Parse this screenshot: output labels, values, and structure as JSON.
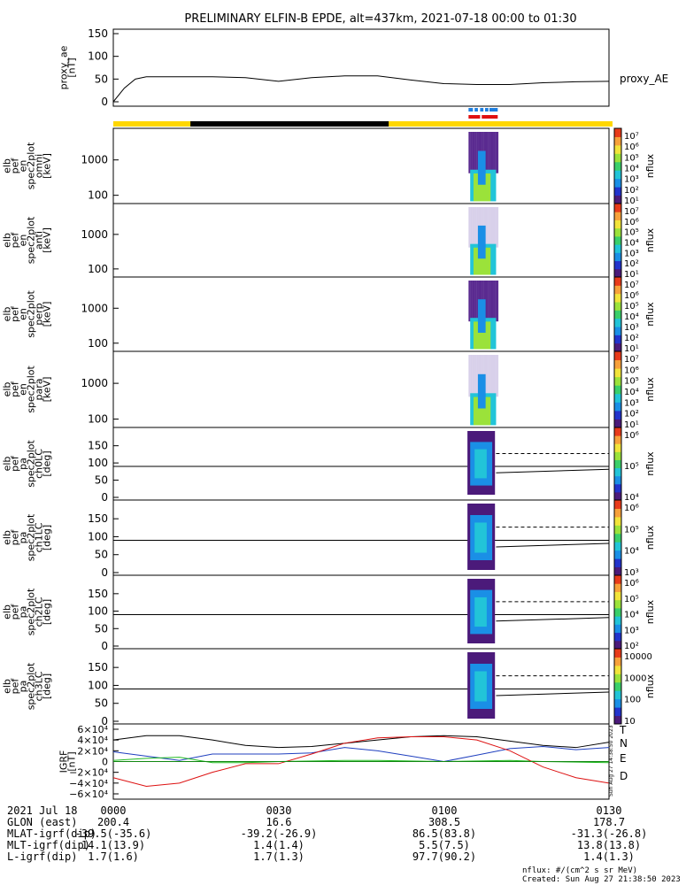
{
  "title": "PRELIMINARY ELFIN-B EPDE, alt=437km, 2021-07-18 00:00 to 01:30",
  "panels": [
    {
      "id": "proxy_ae",
      "ylabel": [
        "proxy_ae",
        "[nT]"
      ],
      "ticks": [
        "150",
        "100",
        "50",
        "0"
      ],
      "right_label": "proxy_AE"
    },
    {
      "id": "omni",
      "ylabel": [
        "elb",
        "pef",
        "en",
        "spec2plot",
        "omni",
        "[keV]"
      ],
      "ticks": [
        "1000",
        "100"
      ],
      "cb_ticks": [
        "10⁷",
        "10⁶",
        "10⁵",
        "10⁴",
        "10³",
        "10²",
        "10¹"
      ],
      "cb_label": "nflux"
    },
    {
      "id": "anti",
      "ylabel": [
        "elb",
        "pef",
        "en",
        "spec2plot",
        "anti",
        "[keV]"
      ],
      "ticks": [
        "1000",
        "100"
      ],
      "cb_ticks": [
        "10⁷",
        "10⁶",
        "10⁵",
        "10⁴",
        "10³",
        "10²",
        "10¹"
      ],
      "cb_label": "nflux"
    },
    {
      "id": "perp",
      "ylabel": [
        "elb",
        "pef",
        "en",
        "spec2plot",
        "perp",
        "[keV]"
      ],
      "ticks": [
        "1000",
        "100"
      ],
      "cb_ticks": [
        "10⁷",
        "10⁶",
        "10⁵",
        "10⁴",
        "10³",
        "10²",
        "10¹"
      ],
      "cb_label": "nflux"
    },
    {
      "id": "para",
      "ylabel": [
        "elb",
        "pef",
        "en",
        "spec2plot",
        "para",
        "[keV]"
      ],
      "ticks": [
        "1000",
        "100"
      ],
      "cb_ticks": [
        "10⁷",
        "10⁶",
        "10⁵",
        "10⁴",
        "10³",
        "10²",
        "10¹"
      ],
      "cb_label": "nflux"
    },
    {
      "id": "ch0LC",
      "ylabel": [
        "elb",
        "pef",
        "pa",
        "spec2plot",
        "ch0LC",
        "[deg]"
      ],
      "ticks": [
        "150",
        "100",
        "50",
        "0"
      ],
      "cb_ticks": [
        "10⁶",
        "10⁵",
        "10⁴"
      ],
      "cb_label": "nflux"
    },
    {
      "id": "ch1LC",
      "ylabel": [
        "elb",
        "pef",
        "pa",
        "spec2plot",
        "ch1LC",
        "[deg]"
      ],
      "ticks": [
        "150",
        "100",
        "50",
        "0"
      ],
      "cb_ticks": [
        "10⁶",
        "10⁵",
        "10⁴",
        "10³"
      ],
      "cb_label": "nflux"
    },
    {
      "id": "ch2LC",
      "ylabel": [
        "elb",
        "pef",
        "pa",
        "spec2plot",
        "ch2LC",
        "[deg]"
      ],
      "ticks": [
        "150",
        "100",
        "50",
        "0"
      ],
      "cb_ticks": [
        "10⁶",
        "10⁵",
        "10⁴",
        "10³",
        "10²"
      ],
      "cb_label": "nflux"
    },
    {
      "id": "ch3LC",
      "ylabel": [
        "elb",
        "pef",
        "pa",
        "spec2plot",
        "ch3LC",
        "[deg]"
      ],
      "ticks": [
        "150",
        "100",
        "50",
        "0"
      ],
      "cb_ticks": [
        "10000",
        "1000",
        "100",
        "10"
      ],
      "cb_label": "nflux"
    },
    {
      "id": "igrf",
      "ylabel": [
        "IGRF",
        "[nT]"
      ],
      "ticks": [
        "6×10⁴",
        "4×10⁴",
        "2×10⁴",
        "0",
        "−2×10⁴",
        "−4×10⁴",
        "−6×10⁴"
      ],
      "components": [
        "T",
        "N",
        "E",
        "D"
      ]
    }
  ],
  "component_colors": {
    "T": "#000000",
    "N": "#1f3fbf",
    "E": "#22bb22",
    "D": "#dd1111"
  },
  "bar_colors": {
    "sunlit": "#ffd700",
    "shadow": "#000000",
    "science_top": "#1e7fe0",
    "science_bottom": "#e01010"
  },
  "side_stamp": "Sun Aug 27 14:38:50 2023",
  "footer": {
    "date": "2021 Jul 18",
    "times": [
      "0000",
      "0030",
      "0100",
      "0130"
    ],
    "rows": [
      {
        "label": "GLON (east)",
        "values": [
          "200.4",
          "16.6",
          "308.5",
          "178.7"
        ]
      },
      {
        "label": "MLAT-igrf(dip)",
        "values": [
          "-39.5(-35.6)",
          "-39.2(-26.9)",
          "86.5(83.8)",
          "-31.3(-26.8)"
        ]
      },
      {
        "label": "MLT-igrf(dip)",
        "values": [
          "14.1(13.9)",
          "1.4(1.4)",
          "5.5(7.5)",
          "13.8(13.8)"
        ]
      },
      {
        "label": "L-igrf(dip)",
        "values": [
          "1.7(1.6)",
          "1.7(1.3)",
          "97.7(90.2)",
          "1.4(1.3)"
        ]
      }
    ],
    "units_note": "nflux: #/(cm^2 s sr MeV)",
    "created": "Created: Sun Aug 27 21:38:50 2023"
  },
  "chart_data": [
    {
      "type": "line",
      "name": "proxy_AE",
      "ylabel": "proxy_ae [nT]",
      "ylim": [
        0,
        150
      ],
      "x": [
        0,
        2,
        4,
        6,
        12,
        18,
        24,
        30,
        36,
        42,
        48,
        54,
        60,
        66,
        72,
        78,
        84,
        90
      ],
      "y": [
        0,
        30,
        50,
        55,
        55,
        55,
        53,
        45,
        53,
        57,
        57,
        48,
        40,
        38,
        38,
        42,
        44,
        45
      ]
    },
    {
      "type": "heatmap",
      "name": "omni",
      "ylabel": "[keV]",
      "yscale": "log",
      "yticks": [
        100,
        1000
      ]
    },
    {
      "type": "heatmap",
      "name": "anti",
      "ylabel": "[keV]",
      "yscale": "log",
      "yticks": [
        100,
        1000
      ]
    },
    {
      "type": "heatmap",
      "name": "perp",
      "ylabel": "[keV]",
      "yscale": "log",
      "yticks": [
        100,
        1000
      ]
    },
    {
      "type": "heatmap",
      "name": "para",
      "ylabel": "[keV]",
      "yscale": "log",
      "yticks": [
        100,
        1000
      ]
    },
    {
      "type": "heatmap",
      "name": "ch0LC",
      "ylabel": "[deg]",
      "ylim": [
        0,
        180
      ],
      "yticks": [
        0,
        50,
        100,
        150
      ]
    },
    {
      "type": "heatmap",
      "name": "ch1LC",
      "ylabel": "[deg]",
      "ylim": [
        0,
        180
      ],
      "yticks": [
        0,
        50,
        100,
        150
      ]
    },
    {
      "type": "heatmap",
      "name": "ch2LC",
      "ylabel": "[deg]",
      "ylim": [
        0,
        180
      ],
      "yticks": [
        0,
        50,
        100,
        150
      ]
    },
    {
      "type": "heatmap",
      "name": "ch3LC",
      "ylabel": "[deg]",
      "ylim": [
        0,
        180
      ],
      "yticks": [
        0,
        50,
        100,
        150
      ]
    },
    {
      "type": "line",
      "name": "IGRF",
      "ylabel": "[nT]",
      "ylim": [
        -60000,
        60000
      ],
      "x": [
        0,
        6,
        12,
        18,
        24,
        30,
        36,
        42,
        48,
        54,
        60,
        66,
        72,
        78,
        84,
        90
      ],
      "series": [
        {
          "name": "T",
          "y": [
            40000,
            48000,
            48000,
            40000,
            30000,
            26000,
            28000,
            34000,
            40000,
            46000,
            48000,
            46000,
            38000,
            30000,
            26000,
            36000
          ]
        },
        {
          "name": "N",
          "y": [
            18000,
            10000,
            2000,
            14000,
            14000,
            14000,
            16000,
            26000,
            20000,
            10000,
            0,
            12000,
            24000,
            28000,
            22000,
            26000
          ]
        },
        {
          "name": "E",
          "y": [
            2000,
            6000,
            8000,
            -2000,
            -2000,
            0,
            1000,
            2000,
            2000,
            1000,
            0,
            1000,
            2000,
            0,
            -1000,
            -2000
          ]
        },
        {
          "name": "D",
          "y": [
            -30000,
            -46000,
            -40000,
            -20000,
            -4000,
            -4000,
            14000,
            34000,
            44000,
            46000,
            46000,
            40000,
            20000,
            -10000,
            -30000,
            -40000
          ]
        }
      ]
    }
  ]
}
